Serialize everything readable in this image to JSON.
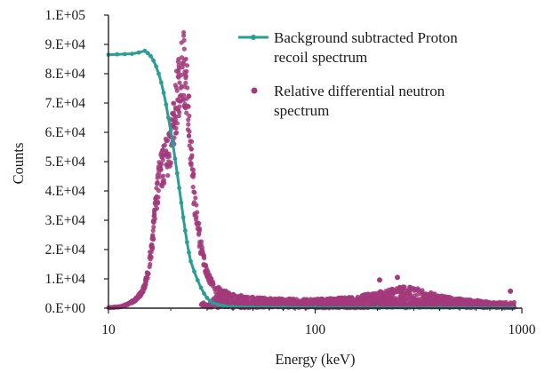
{
  "chart_data": {
    "type": "scatter",
    "title": "",
    "xlabel": "Energy (keV)",
    "ylabel": "Counts",
    "x_scale": "log",
    "xlim": [
      10,
      1000
    ],
    "ylim": [
      0,
      100000
    ],
    "x_ticks": [
      "10",
      "100",
      "1000"
    ],
    "y_ticks": [
      "0.E+00",
      "1.E+04",
      "2.E+04",
      "3.E+04",
      "4.E+04",
      "5.E+04",
      "6.E+04",
      "7.E+04",
      "8.E+04",
      "9.E+04",
      "1.E+05"
    ],
    "grid": false,
    "legend_position": "top-right",
    "series": [
      {
        "name": "Background subtracted Proton recoil spectrum",
        "legend_lines": [
          "Background subtracted Proton",
          "recoil spectrum"
        ],
        "style": "line-with-markers",
        "color": "#2a9d95",
        "points": [
          [
            10.0,
            86500
          ],
          [
            11.0,
            86600
          ],
          [
            12.0,
            86700
          ],
          [
            13.0,
            86800
          ],
          [
            14.0,
            87200
          ],
          [
            15.0,
            87800
          ],
          [
            15.5,
            87000
          ],
          [
            16.0,
            86000
          ],
          [
            16.5,
            84500
          ],
          [
            17.0,
            82500
          ],
          [
            17.5,
            80000
          ],
          [
            18.0,
            77000
          ],
          [
            18.5,
            73500
          ],
          [
            19.0,
            69500
          ],
          [
            19.5,
            65000
          ],
          [
            20.0,
            60500
          ],
          [
            20.5,
            56000
          ],
          [
            21.0,
            51000
          ],
          [
            21.5,
            46000
          ],
          [
            22.0,
            41000
          ],
          [
            22.5,
            36000
          ],
          [
            23.0,
            31000
          ],
          [
            23.5,
            26500
          ],
          [
            24.0,
            22500
          ],
          [
            24.5,
            19000
          ],
          [
            25.0,
            16000
          ],
          [
            26.0,
            12500
          ],
          [
            27.0,
            9500
          ],
          [
            28.0,
            7000
          ],
          [
            29.0,
            5000
          ],
          [
            30.0,
            3500
          ],
          [
            31.0,
            2500
          ],
          [
            32.0,
            1800
          ],
          [
            34.0,
            1200
          ],
          [
            36.0,
            800
          ],
          [
            40.0,
            500
          ],
          [
            50.0,
            300
          ],
          [
            70.0,
            200
          ],
          [
            100.0,
            150
          ],
          [
            200.0,
            100
          ],
          [
            400.0,
            80
          ],
          [
            900.0,
            50
          ]
        ]
      },
      {
        "name": "Relative differential neutron spectrum",
        "legend_lines": [
          "Relative differential neutron",
          "spectrum"
        ],
        "style": "markers",
        "color": "#a23a7b",
        "envelope_points": [
          [
            10.0,
            200
          ],
          [
            11.5,
            500
          ],
          [
            12.5,
            1500
          ],
          [
            13.5,
            3000
          ],
          [
            14.5,
            5500
          ],
          [
            15.0,
            8000
          ],
          [
            15.5,
            12000
          ],
          [
            16.0,
            19000
          ],
          [
            16.5,
            28000
          ],
          [
            17.0,
            37000
          ],
          [
            17.5,
            44000
          ],
          [
            18.0,
            49000
          ],
          [
            19.0,
            53000
          ],
          [
            20.0,
            58000
          ],
          [
            21.0,
            67000
          ],
          [
            21.5,
            75000
          ],
          [
            22.0,
            80000
          ],
          [
            22.5,
            84000
          ],
          [
            23.0,
            85000
          ],
          [
            23.5,
            81000
          ],
          [
            24.0,
            75000
          ],
          [
            24.5,
            66000
          ],
          [
            25.0,
            56000
          ],
          [
            25.5,
            46000
          ],
          [
            26.0,
            38000
          ],
          [
            27.0,
            29000
          ],
          [
            28.0,
            22000
          ],
          [
            29.0,
            16000
          ],
          [
            30.0,
            12000
          ],
          [
            32.0,
            8000
          ],
          [
            35.0,
            6000
          ],
          [
            40.0,
            4500
          ],
          [
            50.0,
            3500
          ],
          [
            70.0,
            3000
          ],
          [
            100.0,
            2800
          ],
          [
            150.0,
            3500
          ],
          [
            200.0,
            5000
          ],
          [
            250.0,
            6500
          ],
          [
            280.0,
            7000
          ],
          [
            320.0,
            6000
          ],
          [
            400.0,
            4000
          ],
          [
            500.0,
            3000
          ],
          [
            600.0,
            2500
          ],
          [
            700.0,
            2000
          ],
          [
            800.0,
            1500
          ],
          [
            900.0,
            1000
          ]
        ],
        "outliers": [
          [
            880.0,
            5800
          ],
          [
            250.0,
            10500
          ],
          [
            205.0,
            9600
          ]
        ]
      }
    ]
  }
}
